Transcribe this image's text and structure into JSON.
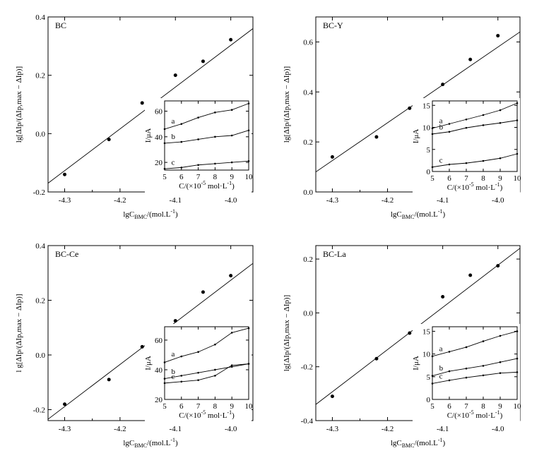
{
  "chart_data": [
    {
      "type": "scatter",
      "panel_label": "BC",
      "xlabel": "lgC_BMC/(mol.L^-1)",
      "ylabel": "lg[ΔIp/(ΔIp,max − ΔIp)]",
      "xlim": [
        -4.33,
        -3.96
      ],
      "ylim": [
        -0.2,
        0.4
      ],
      "x_ticks": [
        "-4.3",
        "-4.2",
        "-4.1",
        "-4.0"
      ],
      "y_ticks": [
        "-0.2",
        "0.0",
        "0.2",
        "0.4"
      ],
      "points": {
        "x": [
          -4.3,
          -4.22,
          -4.16,
          -4.1,
          -4.05,
          -4.0
        ],
        "y": [
          -0.14,
          -0.02,
          0.105,
          0.2,
          0.248,
          0.322
        ]
      },
      "fit_line": {
        "x": [
          -4.33,
          -3.96
        ],
        "y": [
          -0.17,
          0.36
        ]
      },
      "inset": {
        "type": "line",
        "xlabel": "C/(×10^-5 mol·L^-1)",
        "ylabel": "I/μA",
        "xlim": [
          5,
          10
        ],
        "ylim": [
          14,
          68
        ],
        "x_ticks": [
          "5",
          "6",
          "7",
          "8",
          "9",
          "10"
        ],
        "y_ticks": [
          "20",
          "40",
          "60"
        ],
        "series": [
          {
            "name": "a",
            "x": [
              5,
              6,
              7,
              8,
              9,
              10
            ],
            "y": [
              46,
              50,
              55,
              59,
              61,
              66
            ]
          },
          {
            "name": "b",
            "x": [
              5,
              6,
              7,
              8,
              9,
              10
            ],
            "y": [
              35,
              36,
              38,
              40,
              41,
              45
            ]
          },
          {
            "name": "c",
            "x": [
              5,
              6,
              7,
              8,
              9,
              10
            ],
            "y": [
              15,
              16,
              18,
              19,
              20,
              21
            ]
          }
        ]
      }
    },
    {
      "type": "scatter",
      "panel_label": "BC-Y",
      "xlabel": "lgC_BMC/(mol.L^-1)",
      "ylabel": "lg[ΔIp/(ΔIp,max − ΔIp)]",
      "xlim": [
        -4.33,
        -3.96
      ],
      "ylim": [
        0.0,
        0.7
      ],
      "x_ticks": [
        "-4.3",
        "-4.2",
        "-4.1",
        "-4.0"
      ],
      "y_ticks": [
        "0.0",
        "0.2",
        "0.4",
        "0.6"
      ],
      "points": {
        "x": [
          -4.3,
          -4.22,
          -4.16,
          -4.1,
          -4.05,
          -4.0
        ],
        "y": [
          0.14,
          0.22,
          0.335,
          0.43,
          0.53,
          0.625
        ]
      },
      "fit_line": {
        "x": [
          -4.33,
          -3.96
        ],
        "y": [
          0.08,
          0.64
        ]
      },
      "inset": {
        "type": "line",
        "xlabel": "C/(×10^-5 mol·L^-1)",
        "ylabel": "I/μA",
        "xlim": [
          5,
          10
        ],
        "ylim": [
          0,
          16
        ],
        "x_ticks": [
          "5",
          "6",
          "7",
          "8",
          "9",
          "10"
        ],
        "y_ticks": [
          "0",
          "5",
          "10",
          "15"
        ],
        "series": [
          {
            "name": "a",
            "x": [
              5,
              6,
              7,
              8,
              9,
              10
            ],
            "y": [
              9.8,
              10.8,
              11.8,
              12.8,
              13.9,
              15.5
            ]
          },
          {
            "name": "b",
            "x": [
              5,
              6,
              7,
              8,
              9,
              10
            ],
            "y": [
              8.5,
              9.0,
              9.9,
              10.5,
              11.0,
              11.6
            ]
          },
          {
            "name": "c",
            "x": [
              5,
              6,
              7,
              8,
              9,
              10
            ],
            "y": [
              1.0,
              1.6,
              1.9,
              2.4,
              3.0,
              4.0
            ]
          }
        ]
      }
    },
    {
      "type": "scatter",
      "panel_label": "BC-Ce",
      "xlabel": "lgC_BMC/(mol.L^-1)",
      "ylabel": "l g[ΔIp/(ΔIp,max − ΔIp)]",
      "xlim": [
        -4.33,
        -3.96
      ],
      "ylim": [
        -0.24,
        0.4
      ],
      "x_ticks": [
        "-4.3",
        "-4.2",
        "-4.1",
        "-4.0"
      ],
      "y_ticks": [
        "-0.2",
        "0.0",
        "0.2",
        "0.4"
      ],
      "points": {
        "x": [
          -4.3,
          -4.22,
          -4.16,
          -4.1,
          -4.05,
          -4.0
        ],
        "y": [
          -0.18,
          -0.09,
          0.03,
          0.125,
          0.23,
          0.29
        ]
      },
      "fit_line": {
        "x": [
          -4.33,
          -3.96
        ],
        "y": [
          -0.235,
          0.335
        ]
      },
      "inset": {
        "type": "line",
        "xlabel": "C/(×10^-5 mol·L^-1)",
        "ylabel": "I/μA",
        "xlim": [
          5,
          10
        ],
        "ylim": [
          20,
          69
        ],
        "x_ticks": [
          "5",
          "6",
          "7",
          "8",
          "9",
          "10"
        ],
        "y_ticks": [
          "20",
          "40",
          "60"
        ],
        "series": [
          {
            "name": "a",
            "x": [
              5,
              6,
              7,
              8,
              9,
              10
            ],
            "y": [
              45,
              49,
              52,
              57,
              65,
              68
            ]
          },
          {
            "name": "b",
            "x": [
              5,
              6,
              7,
              8,
              9,
              10
            ],
            "y": [
              34,
              36,
              38,
              40,
              42,
              44
            ]
          },
          {
            "name": "c",
            "x": [
              5,
              6,
              7,
              8,
              9,
              10
            ],
            "y": [
              31,
              32,
              33,
              36,
              43,
              44
            ]
          }
        ]
      }
    },
    {
      "type": "scatter",
      "panel_label": "BC-La",
      "xlabel": "lgC_BMC/(mol.L^-1)",
      "ylabel": "lg[ΔIp/(ΔIp,max − ΔIp)]",
      "xlim": [
        -4.33,
        -3.96
      ],
      "ylim": [
        -0.4,
        0.25
      ],
      "x_ticks": [
        "-4.3",
        "-4.2",
        "-4.1",
        "-4.0"
      ],
      "y_ticks": [
        "-0.4",
        "-0.2",
        "0.0",
        "0.2"
      ],
      "points": {
        "x": [
          -4.3,
          -4.22,
          -4.16,
          -4.1,
          -4.05,
          -4.0
        ],
        "y": [
          -0.31,
          -0.17,
          -0.075,
          0.06,
          0.14,
          0.175
        ]
      },
      "fit_line": {
        "x": [
          -4.33,
          -3.96
        ],
        "y": [
          -0.34,
          0.24
        ]
      },
      "inset": {
        "type": "line",
        "xlabel": "C/(×10^-5 mol·L^-1)",
        "ylabel": "I/μA",
        "xlim": [
          5,
          10
        ],
        "ylim": [
          0,
          16
        ],
        "x_ticks": [
          "5",
          "6",
          "7",
          "8",
          "9",
          "10"
        ],
        "y_ticks": [
          "0",
          "5",
          "10",
          "15"
        ],
        "series": [
          {
            "name": "a",
            "x": [
              5,
              6,
              7,
              8,
              9,
              10
            ],
            "y": [
              9.5,
              10.5,
              11.5,
              12.8,
              14.0,
              15.0
            ]
          },
          {
            "name": "b",
            "x": [
              5,
              6,
              7,
              8,
              9,
              10
            ],
            "y": [
              5.2,
              6.2,
              6.8,
              7.4,
              8.2,
              9.0
            ]
          },
          {
            "name": "c",
            "x": [
              5,
              6,
              7,
              8,
              9,
              10
            ],
            "y": [
              3.5,
              4.2,
              4.8,
              5.3,
              5.8,
              6.0
            ]
          }
        ]
      }
    }
  ]
}
